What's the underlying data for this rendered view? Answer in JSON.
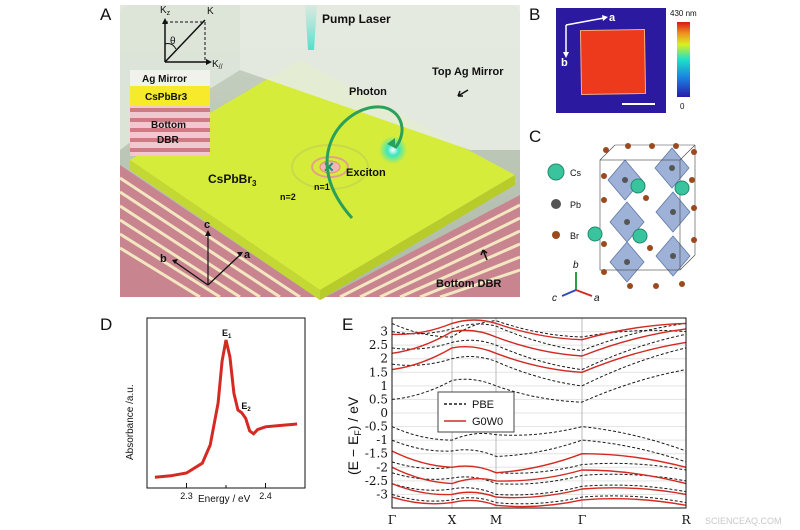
{
  "panels": {
    "A": {
      "letter": "A",
      "pump_laser": "Pump Laser",
      "top_mirror": "Top Ag Mirror",
      "photon": "Photon",
      "exciton": "Exciton",
      "material": "CsPbBr",
      "material_sub": "3",
      "n2": "n=2",
      "n1": "n=1",
      "bottom_dbr": "Bottom DBR",
      "axis_a": "a",
      "axis_b": "b",
      "axis_c": "c",
      "inset_kz": "K",
      "inset_kz_sub": "z",
      "inset_k": "K",
      "inset_theta": "θ",
      "inset_kpar": "K",
      "inset_kpar_sub": "//",
      "layer_mirror": "Ag Mirror",
      "layer_cspbbr3": "CsPbBr3",
      "layer_bottom": "Bottom",
      "layer_dbr": "DBR"
    },
    "B": {
      "letter": "B",
      "axis_a": "a",
      "axis_b": "b",
      "colorbar_max": "430 nm",
      "colorbar_min": "0"
    },
    "C": {
      "letter": "C",
      "cs": "Cs",
      "pb": "Pb",
      "br": "Br",
      "axis_a": "a",
      "axis_b": "b",
      "axis_c": "c"
    },
    "D": {
      "letter": "D"
    },
    "E": {
      "letter": "E"
    }
  },
  "colors": {
    "perovskite": "#d6ec3a",
    "mirror": "#e6ebe2",
    "dbr_stripe": "#c9747f",
    "curve_d": "#d42a22",
    "gw": "#d42a22",
    "pbe": "#1a1a1a",
    "accent_green": "#2fbf8a"
  },
  "chart_data": [
    {
      "type": "line",
      "xlabel": "Energy / eV",
      "ylabel": "Absorbance /a.u.",
      "x_ticks": [
        "2.3",
        "2.4"
      ],
      "xlim": [
        2.25,
        2.45
      ],
      "annotations": [
        {
          "text": "E",
          "sub": "1",
          "x": 2.35,
          "y": 1.0
        },
        {
          "text": "E",
          "sub": "2",
          "x": 2.372,
          "y": 0.52
        }
      ],
      "series": [
        {
          "x": [
            2.26,
            2.28,
            2.3,
            2.32,
            2.33,
            2.34,
            2.345,
            2.35,
            2.355,
            2.36,
            2.365,
            2.37,
            2.375,
            2.38,
            2.385,
            2.39,
            2.4,
            2.42,
            2.44
          ],
          "y": [
            0.02,
            0.03,
            0.05,
            0.12,
            0.25,
            0.55,
            0.85,
            1.0,
            0.88,
            0.62,
            0.5,
            0.48,
            0.44,
            0.35,
            0.33,
            0.36,
            0.38,
            0.39,
            0.4
          ]
        }
      ]
    },
    {
      "type": "line",
      "ylabel": "(E − E_F) / eV",
      "ylabel_main": "(E − E",
      "ylabel_sub": "F",
      "ylabel_tail": ") / eV",
      "ylim": [
        -3.5,
        3.5
      ],
      "y_ticks": [
        "3",
        "2.5",
        "2",
        "1.5",
        "1",
        "0.5",
        "0",
        "-0.5",
        "-1",
        "-1.5",
        "-2",
        "-2.5",
        "-3"
      ],
      "x_ticks": [
        "Γ",
        "X",
        "M",
        "Γ",
        "R"
      ],
      "legend": [
        "PBE",
        "G0W0"
      ],
      "legend_position": "center-left",
      "grid": true
    }
  ],
  "watermark": "SCIENCEAQ.COM"
}
